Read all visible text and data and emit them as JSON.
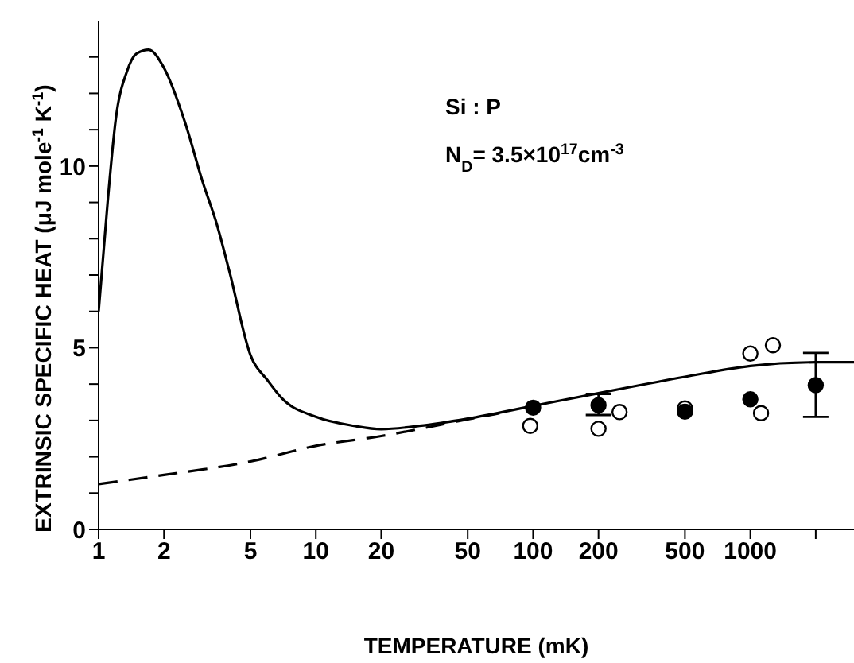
{
  "chart_data": {
    "type": "line",
    "xlabel": "TEMPERATURE (mK)",
    "ylabel": "EXTRINSIC SPECIFIC HEAT (μJ mole$^{-1}$ K$^{-1}$)",
    "annotations": [
      "Si : P",
      "N$_{D}$= 3.5×10$^{17}$cm$^{-3}$"
    ],
    "log": "x",
    "grid": false,
    "legend": false,
    "xlim": [
      1,
      3000
    ],
    "ylim": [
      0,
      14
    ],
    "xticks": [
      1,
      2,
      5,
      10,
      20,
      50,
      100,
      200,
      500,
      1000,
      {
        "value": 2000,
        "label": null
      }
    ],
    "yticks": [
      0,
      {
        "value": 1,
        "label": null
      },
      {
        "value": 2,
        "label": null
      },
      {
        "value": 3,
        "label": null
      },
      {
        "value": 4,
        "label": null
      },
      5,
      {
        "value": 6,
        "label": null
      },
      {
        "value": 7,
        "label": null
      },
      {
        "value": 8,
        "label": null
      },
      {
        "value": 9,
        "label": null
      },
      10,
      {
        "value": 11,
        "label": null
      },
      {
        "value": 12,
        "label": null
      },
      {
        "value": 13,
        "label": null
      }
    ],
    "series": [
      {
        "color": "#000000",
        "line_style": "solid",
        "marker": "none",
        "x": [
          1,
          1.1,
          1.2,
          1.35,
          1.5,
          1.7,
          2,
          2.5,
          3,
          3.5,
          4,
          5,
          6,
          7,
          10,
          15,
          20,
          30,
          50,
          100,
          200,
          500,
          1000,
          2000,
          3000
        ],
        "values": [
          6.0,
          9.0,
          11.3,
          12.6,
          13.1,
          13.2,
          12.7,
          11.2,
          9.6,
          8.4,
          7.1,
          4.8,
          4.1,
          3.6,
          3.1,
          2.85,
          2.76,
          2.85,
          3.05,
          3.4,
          3.75,
          4.2,
          4.5,
          4.6,
          4.6
        ]
      },
      {
        "color": "#000000",
        "line_style": "dashed",
        "marker": "none",
        "x": [
          1,
          2,
          5,
          10,
          20,
          50,
          70
        ],
        "values": [
          1.25,
          1.5,
          1.87,
          2.3,
          2.57,
          3.03,
          3.2
        ]
      },
      {
        "type": "scatter",
        "color": "#000000",
        "marker": "circle",
        "x": [
          100,
          200,
          500,
          1000,
          2000
        ],
        "values": [
          3.35,
          3.42,
          3.24,
          3.58,
          3.97
        ],
        "errors": [
          null,
          [
            3.15,
            3.73
          ],
          null,
          null,
          [
            3.1,
            4.86
          ]
        ]
      },
      {
        "type": "scatter",
        "color": "#ffffff",
        "marker": "circle",
        "x": [
          97,
          200,
          250,
          500,
          1000,
          1120,
          1270
        ],
        "values": [
          2.85,
          2.77,
          3.23,
          3.33,
          4.84,
          3.2,
          5.07
        ]
      }
    ]
  }
}
